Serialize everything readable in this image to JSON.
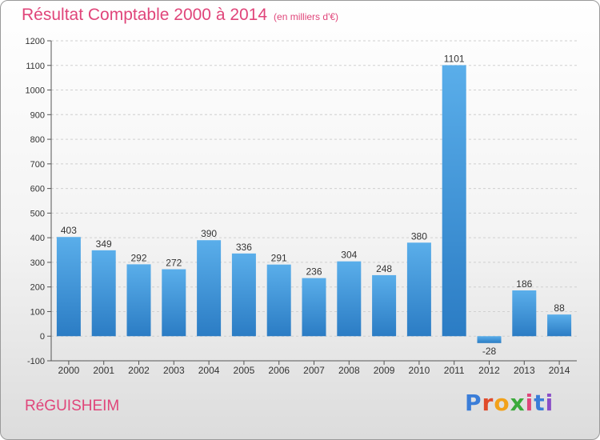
{
  "header": {
    "title": "Résultat Comptable 2000 à 2014",
    "subtitle": "(en milliers d'€)"
  },
  "footer": {
    "commune": "RéGUISHEIM",
    "logo_text": "Proxiti",
    "logo_colors": [
      "#3a7dd8",
      "#e04a2a",
      "#f2a11a",
      "#3aaa3a",
      "#e0457a",
      "#3a7dd8",
      "#8a4fc8"
    ]
  },
  "colors": {
    "bar_light": "#5aaeea",
    "bar_dark": "#2b7cc4",
    "title": "#e0457a"
  },
  "chart_data": {
    "type": "bar",
    "categories": [
      "2000",
      "2001",
      "2002",
      "2003",
      "2004",
      "2005",
      "2006",
      "2007",
      "2008",
      "2009",
      "2010",
      "2011",
      "2012",
      "2013",
      "2014"
    ],
    "values": [
      403,
      349,
      292,
      272,
      390,
      336,
      291,
      236,
      304,
      248,
      380,
      1101,
      -28,
      186,
      88
    ],
    "title": "Résultat Comptable 2000 à 2014",
    "subtitle": "(en milliers d'€)",
    "ylim": [
      -100,
      1200
    ],
    "yticks": [
      -100,
      0,
      100,
      200,
      300,
      400,
      500,
      600,
      700,
      800,
      900,
      1000,
      1100,
      1200
    ],
    "grid": true,
    "legend": "none"
  }
}
